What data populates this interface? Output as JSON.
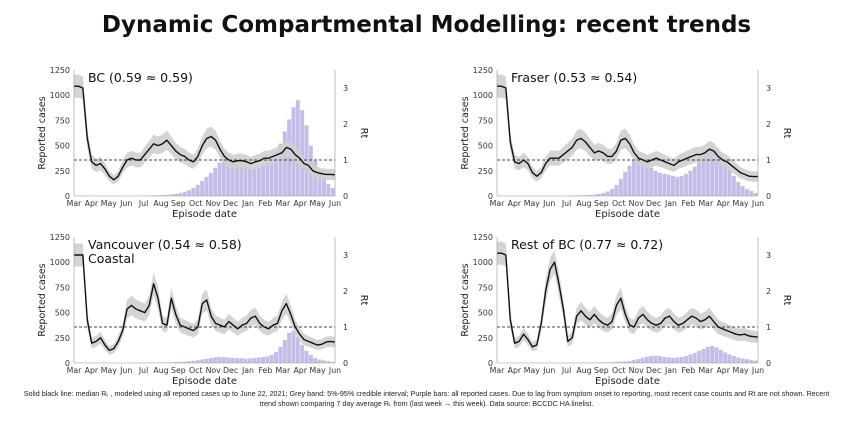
{
  "title": "Dynamic Compartmental Modelling: recent trends",
  "caption": "Solid black line: median Rₜ , modeled using all reported cases up to June 22, 2021; Grey band: 5%-95% credible interval; Purple bars: all reported cases. Due to lag from symptom onset to reporting, most recent case counts and Rt are not shown. Recent trend shown comparing 7 day average Rₜ from (last week → this week).  Data source: BCCDC HA linelist.",
  "colors": {
    "bars": "#b9b3e3",
    "band": "#cfcfcf",
    "line": "#111111",
    "ref": "#444444"
  },
  "chart_data": [
    {
      "type": "line",
      "panel_label": "BC (0.59 ≈ 0.59)",
      "xlabel": "Episode date",
      "ylabel": "Reported cases",
      "y2label": "Rt",
      "x_ticks": [
        "Mar",
        "Apr",
        "May",
        "Jun",
        "Jul",
        "Aug",
        "Sep",
        "Oct",
        "Nov",
        "Dec",
        "Jan",
        "Feb",
        "Mar",
        "Apr",
        "May",
        "Jun"
      ],
      "y_ticks": [
        0,
        250,
        500,
        750,
        1000,
        1250
      ],
      "ylim": [
        0,
        1250
      ],
      "y2_ticks": [
        0,
        1,
        2,
        3
      ],
      "y2lim": [
        0,
        3.5
      ],
      "reference_rt": 1,
      "series": [
        {
          "values": [
            3,
            5,
            4,
            3,
            3,
            2,
            1,
            1,
            1,
            1,
            2,
            2,
            2,
            2,
            3,
            3,
            4,
            5,
            6,
            8,
            10,
            13,
            17,
            22,
            30,
            42,
            58,
            80,
            110,
            150,
            190,
            230,
            280,
            330,
            370,
            380,
            350,
            320,
            300,
            290,
            280,
            270,
            280,
            300,
            330,
            370,
            430,
            520,
            640,
            760,
            880,
            950,
            850,
            700,
            500,
            350,
            250,
            180,
            120,
            80
          ]
        },
        {
          "values": [
            3.05,
            3.05,
            3.0,
            1.6,
            0.95,
            0.85,
            0.9,
            0.75,
            0.55,
            0.45,
            0.55,
            0.8,
            1.0,
            1.05,
            1.0,
            1.0,
            1.15,
            1.3,
            1.45,
            1.4,
            1.45,
            1.55,
            1.4,
            1.25,
            1.15,
            1.1,
            1.0,
            0.95,
            1.1,
            1.4,
            1.6,
            1.65,
            1.55,
            1.3,
            1.1,
            1.0,
            0.95,
            0.98,
            0.98,
            0.95,
            0.9,
            0.95,
            0.98,
            1.05,
            1.05,
            1.1,
            1.15,
            1.2,
            1.35,
            1.3,
            1.15,
            1.05,
            0.9,
            0.85,
            0.7,
            0.65,
            0.62,
            0.6,
            0.6,
            0.59
          ]
        }
      ]
    },
    {
      "type": "line",
      "panel_label": "Fraser (0.53 ≈ 0.54)",
      "xlabel": "Episode date",
      "ylabel": "Reported cases",
      "y2label": "Rt",
      "x_ticks": [
        "Mar",
        "Apr",
        "May",
        "Jun",
        "Jul",
        "Aug",
        "Sep",
        "Oct",
        "Nov",
        "Dec",
        "Jan",
        "Feb",
        "Mar",
        "Apr",
        "May",
        "Jun"
      ],
      "y_ticks": [
        0,
        250,
        500,
        750,
        1000,
        1250
      ],
      "ylim": [
        0,
        1250
      ],
      "y2_ticks": [
        0,
        1,
        2,
        3
      ],
      "y2lim": [
        0,
        3.5
      ],
      "reference_rt": 1,
      "series": [
        {
          "values": [
            2,
            2,
            2,
            1,
            1,
            1,
            1,
            1,
            1,
            1,
            1,
            1,
            1,
            1,
            2,
            2,
            3,
            4,
            5,
            6,
            8,
            10,
            14,
            20,
            30,
            45,
            70,
            110,
            170,
            240,
            300,
            350,
            380,
            360,
            320,
            280,
            250,
            230,
            220,
            210,
            200,
            190,
            200,
            220,
            250,
            290,
            340,
            400,
            460,
            500,
            480,
            420,
            350,
            280,
            200,
            140,
            100,
            70,
            50,
            30
          ]
        },
        {
          "values": [
            3.05,
            3.05,
            3.0,
            1.5,
            0.95,
            0.9,
            1.0,
            0.9,
            0.65,
            0.55,
            0.65,
            0.9,
            1.05,
            1.05,
            1.05,
            1.15,
            1.25,
            1.35,
            1.55,
            1.6,
            1.5,
            1.35,
            1.2,
            1.25,
            1.2,
            1.1,
            1.1,
            1.25,
            1.55,
            1.6,
            1.45,
            1.2,
            1.05,
            1.0,
            0.95,
            1.0,
            1.05,
            1.0,
            0.95,
            0.9,
            0.85,
            0.95,
            1.0,
            1.05,
            1.1,
            1.15,
            1.15,
            1.2,
            1.3,
            1.25,
            1.1,
            1.0,
            0.95,
            0.85,
            0.75,
            0.65,
            0.6,
            0.55,
            0.54,
            0.54
          ]
        }
      ]
    },
    {
      "type": "line",
      "panel_label": "Vancouver (0.54 ≈ 0.58) Coastal",
      "xlabel": "Episode date",
      "ylabel": "Reported cases",
      "y2label": "Rt",
      "x_ticks": [
        "Mar",
        "Apr",
        "May",
        "Jun",
        "Jul",
        "Aug",
        "Sep",
        "Oct",
        "Nov",
        "Dec",
        "Jan",
        "Feb",
        "Mar",
        "Apr",
        "May",
        "Jun"
      ],
      "y_ticks": [
        0,
        250,
        500,
        750,
        1000,
        1250
      ],
      "ylim": [
        0,
        1250
      ],
      "y2_ticks": [
        0,
        1,
        2,
        3
      ],
      "y2lim": [
        0,
        3.5
      ],
      "reference_rt": 1,
      "series": [
        {
          "values": [
            2,
            2,
            2,
            1,
            1,
            1,
            1,
            1,
            1,
            1,
            1,
            1,
            1,
            2,
            2,
            2,
            2,
            3,
            3,
            4,
            5,
            6,
            7,
            9,
            11,
            14,
            18,
            22,
            28,
            35,
            42,
            50,
            56,
            60,
            58,
            54,
            52,
            50,
            48,
            45,
            45,
            50,
            55,
            60,
            65,
            80,
            110,
            160,
            230,
            300,
            320,
            260,
            180,
            120,
            80,
            50,
            35,
            25,
            18,
            12
          ]
        },
        {
          "values": [
            3.0,
            3.0,
            3.0,
            1.2,
            0.55,
            0.6,
            0.7,
            0.5,
            0.35,
            0.4,
            0.6,
            0.9,
            1.5,
            1.6,
            1.5,
            1.45,
            1.4,
            1.6,
            2.2,
            1.8,
            1.1,
            1.05,
            1.8,
            1.35,
            1.05,
            1.0,
            0.95,
            0.9,
            1.0,
            1.65,
            1.75,
            1.3,
            1.1,
            1.05,
            1.0,
            1.15,
            1.05,
            0.95,
            1.05,
            1.1,
            1.25,
            1.3,
            1.1,
            1.0,
            0.95,
            1.05,
            1.1,
            1.45,
            1.65,
            1.35,
            1.0,
            0.8,
            0.65,
            0.6,
            0.55,
            0.5,
            0.52,
            0.58,
            0.6,
            0.58
          ]
        }
      ]
    },
    {
      "type": "line",
      "panel_label": "Rest of BC (0.77 ≈ 0.72)",
      "xlabel": "Episode date",
      "ylabel": "Reported cases",
      "y2label": "Rt",
      "x_ticks": [
        "Mar",
        "Apr",
        "May",
        "Jun",
        "Jul",
        "Aug",
        "Sep",
        "Oct",
        "Nov",
        "Dec",
        "Jan",
        "Feb",
        "Mar",
        "Apr",
        "May",
        "Jun"
      ],
      "y_ticks": [
        0,
        250,
        500,
        750,
        1000,
        1250
      ],
      "ylim": [
        0,
        1250
      ],
      "y2_ticks": [
        0,
        1,
        2,
        3
      ],
      "y2lim": [
        0,
        3.5
      ],
      "reference_rt": 1,
      "series": [
        {
          "values": [
            1,
            1,
            1,
            1,
            1,
            1,
            1,
            1,
            1,
            1,
            1,
            1,
            1,
            1,
            1,
            1,
            2,
            2,
            2,
            3,
            3,
            4,
            4,
            5,
            6,
            7,
            8,
            10,
            12,
            15,
            20,
            28,
            38,
            50,
            62,
            70,
            72,
            68,
            60,
            55,
            52,
            55,
            60,
            70,
            85,
            100,
            120,
            140,
            160,
            170,
            155,
            130,
            105,
            85,
            70,
            55,
            45,
            38,
            30,
            25
          ]
        },
        {
          "values": [
            3.05,
            3.05,
            3.0,
            1.2,
            0.55,
            0.6,
            0.8,
            0.65,
            0.45,
            0.5,
            1.1,
            2.0,
            2.6,
            2.8,
            2.2,
            1.5,
            0.6,
            0.7,
            1.3,
            1.45,
            1.3,
            1.2,
            1.35,
            1.2,
            1.1,
            1.05,
            1.15,
            1.6,
            1.8,
            1.35,
            1.05,
            1.0,
            1.25,
            1.35,
            1.2,
            1.1,
            1.05,
            1.1,
            1.25,
            1.3,
            1.15,
            1.05,
            1.1,
            1.2,
            1.3,
            1.25,
            1.15,
            1.2,
            1.3,
            1.15,
            1.0,
            0.95,
            0.9,
            0.85,
            0.8,
            0.78,
            0.8,
            0.75,
            0.73,
            0.72
          ]
        }
      ]
    }
  ]
}
